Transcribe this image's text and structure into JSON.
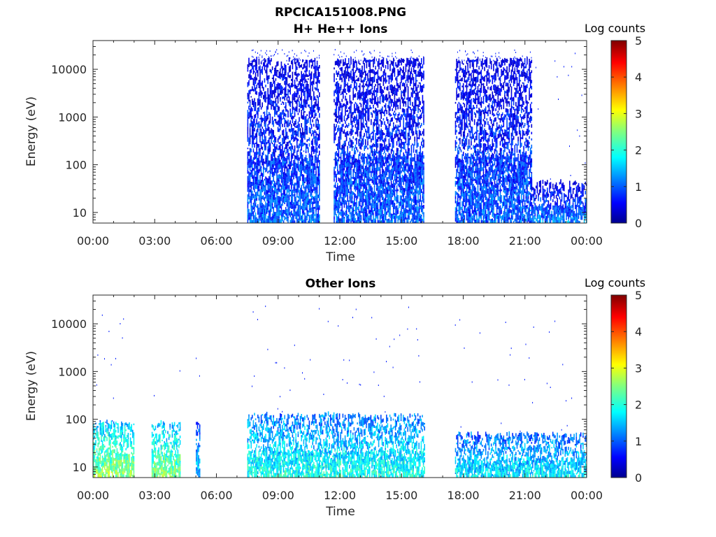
{
  "chart_data": [
    {
      "type": "heatmap",
      "title": [
        "RPCICA151008.PNG",
        "H+ He++ Ions"
      ],
      "xlabel": "Time",
      "ylabel": "Energy (eV)",
      "x_ticks": [
        "00:00",
        "03:00",
        "06:00",
        "09:00",
        "12:00",
        "15:00",
        "18:00",
        "21:00",
        "00:00"
      ],
      "xlim_hours": [
        0,
        24
      ],
      "y_scale": "log",
      "y_ticks": [
        10,
        100,
        1000,
        10000
      ],
      "y_tick_labels": [
        "10",
        "100",
        "1000",
        "10000"
      ],
      "ylim": [
        6,
        40000
      ],
      "colorbar": {
        "label": "Log counts",
        "ticks": [
          "0",
          "1",
          "2",
          "3",
          "4",
          "5"
        ],
        "range": [
          0,
          5
        ],
        "colormap": "jet"
      },
      "activity_intervals_hours": [
        {
          "start": 7.5,
          "end": 11.0,
          "max_energy": 15000,
          "level_low": 1.1,
          "level_high": 0.4
        },
        {
          "start": 11.7,
          "end": 16.1,
          "max_energy": 15000,
          "level_low": 1.1,
          "level_high": 0.4
        },
        {
          "start": 17.6,
          "end": 21.3,
          "max_energy": 15000,
          "level_low": 1.1,
          "level_high": 0.4
        },
        {
          "start": 21.3,
          "end": 24.0,
          "max_energy": 40,
          "level_low": 1.3,
          "level_high": 0.3
        }
      ]
    },
    {
      "type": "heatmap",
      "title": "Other Ions",
      "xlabel": "Time",
      "ylabel": "Energy (eV)",
      "x_ticks": [
        "00:00",
        "03:00",
        "06:00",
        "09:00",
        "12:00",
        "15:00",
        "18:00",
        "21:00",
        "00:00"
      ],
      "xlim_hours": [
        0,
        24
      ],
      "y_scale": "log",
      "y_ticks": [
        10,
        100,
        1000,
        10000
      ],
      "y_tick_labels": [
        "10",
        "100",
        "1000",
        "10000"
      ],
      "ylim": [
        6,
        40000
      ],
      "colorbar": {
        "label": "Log counts",
        "ticks": [
          "0",
          "1",
          "2",
          "3",
          "4",
          "5"
        ],
        "range": [
          0,
          5
        ],
        "colormap": "jet"
      },
      "activity_intervals_hours": [
        {
          "start": 0.0,
          "end": 2.0,
          "max_energy": 80,
          "level_low": 2.6,
          "level_high": 1.6
        },
        {
          "start": 2.85,
          "end": 4.25,
          "max_energy": 80,
          "level_low": 2.5,
          "level_high": 1.5
        },
        {
          "start": 5.0,
          "end": 5.2,
          "max_energy": 80,
          "level_low": 1.5,
          "level_high": 1.0
        },
        {
          "start": 7.5,
          "end": 16.1,
          "max_energy": 120,
          "level_low": 2.0,
          "level_high": 1.2
        },
        {
          "start": 17.6,
          "end": 24.0,
          "max_energy": 45,
          "level_low": 1.8,
          "level_high": 1.1
        }
      ]
    }
  ]
}
